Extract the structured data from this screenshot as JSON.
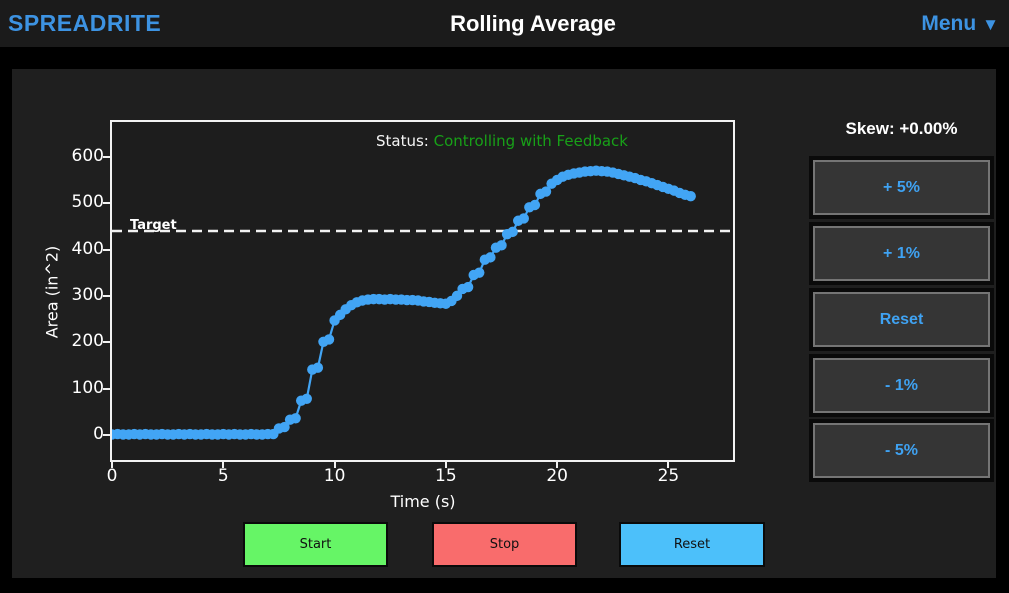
{
  "header": {
    "brand": "SPREADRITE",
    "title": "Rolling Average",
    "menu_label": "Menu",
    "menu_arrow": "▼"
  },
  "chart_data": {
    "type": "line",
    "status_label": "Status: ",
    "status_value": "Controlling with Feedback",
    "target_label": "Target",
    "target_value": 440,
    "xlabel": "Time (s)",
    "ylabel": "Area (in^2)",
    "xticks": [
      0,
      5,
      10,
      15,
      20,
      25
    ],
    "yticks": [
      0,
      100,
      200,
      300,
      400,
      500,
      600
    ],
    "xlim": [
      0,
      27.9
    ],
    "ylim": [
      -54,
      675
    ],
    "x_start": 0,
    "x_step": 0.25,
    "y": [
      1,
      2,
      1,
      1,
      2,
      1,
      2,
      1,
      1,
      2,
      1,
      1,
      2,
      1,
      2,
      1,
      1,
      2,
      1,
      1,
      2,
      1,
      2,
      1,
      1,
      2,
      1,
      1,
      2,
      2,
      14,
      17,
      33,
      36,
      74,
      78,
      141,
      145,
      201,
      206,
      247,
      259,
      271,
      280,
      286,
      290,
      292,
      293,
      293,
      292,
      293,
      292,
      292,
      291,
      291,
      290,
      288,
      287,
      285,
      284,
      283,
      289,
      300,
      315,
      319,
      345,
      350,
      378,
      383,
      404,
      409,
      433,
      438,
      462,
      467,
      491,
      496,
      520,
      525,
      542,
      550,
      557,
      561,
      564,
      566,
      568,
      569,
      570,
      569,
      568,
      566,
      563,
      560,
      557,
      554,
      550,
      547,
      543,
      539,
      535,
      531,
      527,
      522,
      518,
      515
    ],
    "line_color": "#42a5f5",
    "marker": "circle",
    "grid": false,
    "legend": "none",
    "line_style_target": "dashed-white"
  },
  "skew_panel": {
    "skew_label": "Skew: +0.00%",
    "buttons": [
      {
        "label": "+ 5%"
      },
      {
        "label": "+ 1%"
      },
      {
        "label": "Reset"
      },
      {
        "label": "- 1%"
      },
      {
        "label": "- 5%"
      }
    ]
  },
  "controls": {
    "start_label": "Start",
    "stop_label": "Stop",
    "reset_label": "Reset"
  },
  "colors": {
    "accent_blue": "#3d93e2",
    "curve_blue": "#42a5f5",
    "status_green": "#18a018",
    "start_green": "#66f566",
    "stop_red": "#f96c6c",
    "reset_blue": "#4cc0fa",
    "panel_bg": "#1f1f1f",
    "header_bg": "#1b1b1b"
  }
}
